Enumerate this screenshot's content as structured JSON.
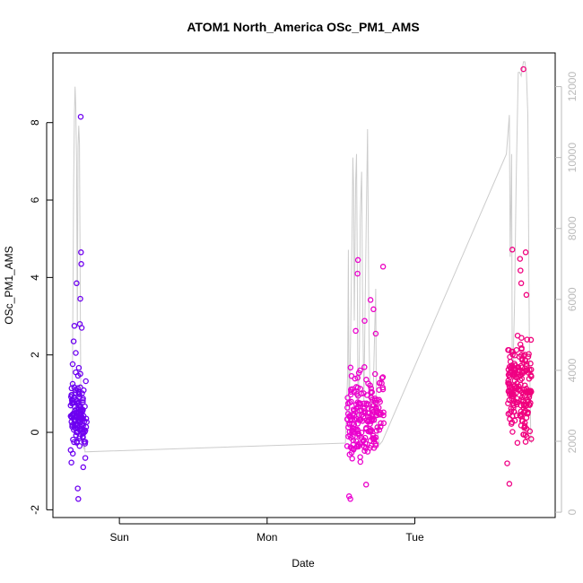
{
  "chart_data": {
    "type": "scatter",
    "title": "ATOM1 North_America OSc_PM1_AMS",
    "xlabel": "Date",
    "ylabel": "OSc_PM1_AMS",
    "ylim": [
      -2.2,
      9.8
    ],
    "y_ticks": [
      -2,
      0,
      2,
      4,
      6,
      8
    ],
    "y2lim": [
      -150,
      12950
    ],
    "y2_ticks": [
      0,
      2000,
      4000,
      6000,
      8000,
      10000,
      12000
    ],
    "xlim": [
      -0.45,
      2.95
    ],
    "x_ticks": [
      {
        "pos": 0,
        "label": "Sun"
      },
      {
        "pos": 1,
        "label": "Mon"
      },
      {
        "pos": 2,
        "label": "Tue"
      }
    ],
    "line_color": "#cccccc",
    "right_axis_color": "#bbbbbb",
    "color_start": "#6a00f0",
    "color_mid": "#e800e8",
    "color_end": "#f0007a",
    "secondary_line": [
      [
        -0.32,
        2350
      ],
      [
        -0.31,
        9200
      ],
      [
        -0.305,
        11100
      ],
      [
        -0.3,
        12000
      ],
      [
        -0.295,
        11400
      ],
      [
        -0.29,
        9800
      ],
      [
        -0.285,
        5200
      ],
      [
        -0.28,
        10300
      ],
      [
        -0.275,
        10900
      ],
      [
        -0.27,
        10400
      ],
      [
        -0.265,
        6100
      ],
      [
        -0.26,
        2100
      ],
      [
        -0.25,
        1950
      ],
      [
        -0.24,
        1800
      ],
      [
        -0.233,
        1900
      ],
      [
        -0.233,
        1700
      ],
      [
        1.53,
        1950
      ],
      [
        1.545,
        3900
      ],
      [
        1.55,
        7400
      ],
      [
        1.555,
        2500
      ],
      [
        1.565,
        4900
      ],
      [
        1.57,
        6400
      ],
      [
        1.575,
        7800
      ],
      [
        1.58,
        10000
      ],
      [
        1.585,
        9200
      ],
      [
        1.59,
        5400
      ],
      [
        1.6,
        9400
      ],
      [
        1.605,
        10100
      ],
      [
        1.61,
        7100
      ],
      [
        1.615,
        2500
      ],
      [
        1.625,
        4700
      ],
      [
        1.63,
        8300
      ],
      [
        1.64,
        9600
      ],
      [
        1.645,
        6400
      ],
      [
        1.655,
        3100
      ],
      [
        1.67,
        7900
      ],
      [
        1.68,
        10800
      ],
      [
        1.69,
        4800
      ],
      [
        1.7,
        2700
      ],
      [
        1.72,
        3700
      ],
      [
        1.735,
        6300
      ],
      [
        1.74,
        2500
      ],
      [
        1.76,
        1900
      ],
      [
        1.78,
        2000
      ],
      [
        2.62,
        10100
      ],
      [
        2.64,
        11200
      ],
      [
        2.645,
        7200
      ],
      [
        2.655,
        10100
      ],
      [
        2.66,
        3200
      ],
      [
        2.675,
        5900
      ],
      [
        2.685,
        9200
      ],
      [
        2.7,
        12400
      ],
      [
        2.71,
        12400
      ],
      [
        2.72,
        12300
      ],
      [
        2.735,
        12700
      ],
      [
        2.745,
        12700
      ],
      [
        2.755,
        12400
      ],
      [
        2.765,
        11200
      ],
      [
        2.775,
        4800
      ],
      [
        2.785,
        2100
      ],
      [
        2.79,
        1950
      ]
    ]
  }
}
